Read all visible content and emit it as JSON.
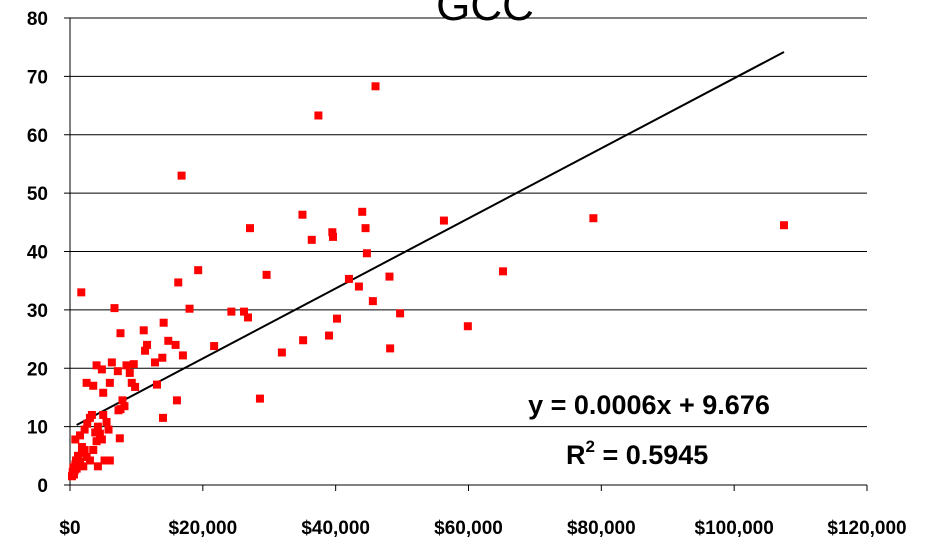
{
  "chart_data": {
    "type": "scatter",
    "title_fragment": "GCC",
    "xlim": [
      0,
      120000
    ],
    "ylim": [
      0,
      80
    ],
    "x_ticks": [
      0,
      20000,
      40000,
      60000,
      80000,
      100000,
      120000
    ],
    "x_tick_labels": [
      "$0",
      "$20,000",
      "$40,000",
      "$60,000",
      "$80,000",
      "$100,000",
      "$120,000"
    ],
    "y_ticks": [
      0,
      10,
      20,
      30,
      40,
      50,
      60,
      70,
      80
    ],
    "y_tick_labels": [
      "0",
      "10",
      "20",
      "30",
      "40",
      "50",
      "60",
      "70",
      "80"
    ],
    "grid": "horizontal",
    "marker_color": "#ff0000",
    "trendline": {
      "slope": 0.0006,
      "intercept": 9.676,
      "x_range": [
        1000,
        107500
      ],
      "equation_label": "y = 0.0006x + 9.676",
      "r2_label": "R",
      "r2_sup": "2",
      "r2_value": " = 0.5945"
    },
    "points": [
      [
        300,
        1.5
      ],
      [
        400,
        2.2
      ],
      [
        500,
        3.0
      ],
      [
        600,
        1.8
      ],
      [
        700,
        2.5
      ],
      [
        800,
        3.5
      ],
      [
        900,
        4.2
      ],
      [
        1000,
        2.8
      ],
      [
        1200,
        5.0
      ],
      [
        1500,
        4.0
      ],
      [
        1800,
        5.5
      ],
      [
        2000,
        3.2
      ],
      [
        2200,
        6.0
      ],
      [
        2500,
        4.8
      ],
      [
        800,
        7.8
      ],
      [
        1500,
        8.5
      ],
      [
        1800,
        6.5
      ],
      [
        2200,
        9.5
      ],
      [
        2600,
        10.5
      ],
      [
        3000,
        11.5
      ],
      [
        3300,
        12.0
      ],
      [
        3800,
        9.0
      ],
      [
        4200,
        10.0
      ],
      [
        4500,
        8.8
      ],
      [
        5000,
        12.0
      ],
      [
        5500,
        10.8
      ],
      [
        4000,
        7.5
      ],
      [
        3500,
        6.0
      ],
      [
        3000,
        4.2
      ],
      [
        4200,
        3.2
      ],
      [
        5200,
        4.2
      ],
      [
        6000,
        4.2
      ],
      [
        4800,
        7.8
      ],
      [
        5800,
        9.5
      ],
      [
        7500,
        8.0
      ],
      [
        7600,
        13.0
      ],
      [
        7900,
        14.5
      ],
      [
        8200,
        13.5
      ],
      [
        7300,
        12.8
      ],
      [
        5000,
        15.8
      ],
      [
        1700,
        33.0
      ],
      [
        2500,
        17.5
      ],
      [
        3500,
        17.0
      ],
      [
        4000,
        20.5
      ],
      [
        4800,
        19.8
      ],
      [
        6000,
        17.5
      ],
      [
        6300,
        21.0
      ],
      [
        6700,
        30.3
      ],
      [
        7200,
        19.5
      ],
      [
        7600,
        26.0
      ],
      [
        8500,
        20.5
      ],
      [
        9000,
        19.2
      ],
      [
        9300,
        17.5
      ],
      [
        9600,
        20.7
      ],
      [
        9800,
        16.8
      ],
      [
        11100,
        26.5
      ],
      [
        11300,
        23.0
      ],
      [
        11600,
        24.0
      ],
      [
        12800,
        21.0
      ],
      [
        13100,
        17.2
      ],
      [
        13900,
        21.8
      ],
      [
        14000,
        11.5
      ],
      [
        14100,
        27.8
      ],
      [
        14800,
        24.7
      ],
      [
        15900,
        24.0
      ],
      [
        16100,
        14.5
      ],
      [
        16300,
        34.7
      ],
      [
        16800,
        53.0
      ],
      [
        17000,
        22.2
      ],
      [
        18000,
        30.2
      ],
      [
        19300,
        36.8
      ],
      [
        21700,
        23.8
      ],
      [
        24300,
        29.7
      ],
      [
        26200,
        29.7
      ],
      [
        26800,
        28.7
      ],
      [
        27100,
        44.0
      ],
      [
        28600,
        14.8
      ],
      [
        29600,
        36.0
      ],
      [
        31900,
        22.7
      ],
      [
        35000,
        46.3
      ],
      [
        35100,
        24.8
      ],
      [
        36400,
        42.0
      ],
      [
        37400,
        63.3
      ],
      [
        39000,
        25.6
      ],
      [
        39500,
        43.3
      ],
      [
        39600,
        42.5
      ],
      [
        40200,
        28.5
      ],
      [
        42000,
        35.3
      ],
      [
        43500,
        34.0
      ],
      [
        44000,
        46.8
      ],
      [
        44500,
        44.0
      ],
      [
        44700,
        39.7
      ],
      [
        45600,
        31.5
      ],
      [
        46000,
        68.3
      ],
      [
        48100,
        35.7
      ],
      [
        48200,
        23.4
      ],
      [
        49700,
        29.4
      ],
      [
        56300,
        45.3
      ],
      [
        59900,
        27.2
      ],
      [
        65200,
        36.6
      ],
      [
        78800,
        45.7
      ],
      [
        107500,
        44.5
      ]
    ]
  }
}
